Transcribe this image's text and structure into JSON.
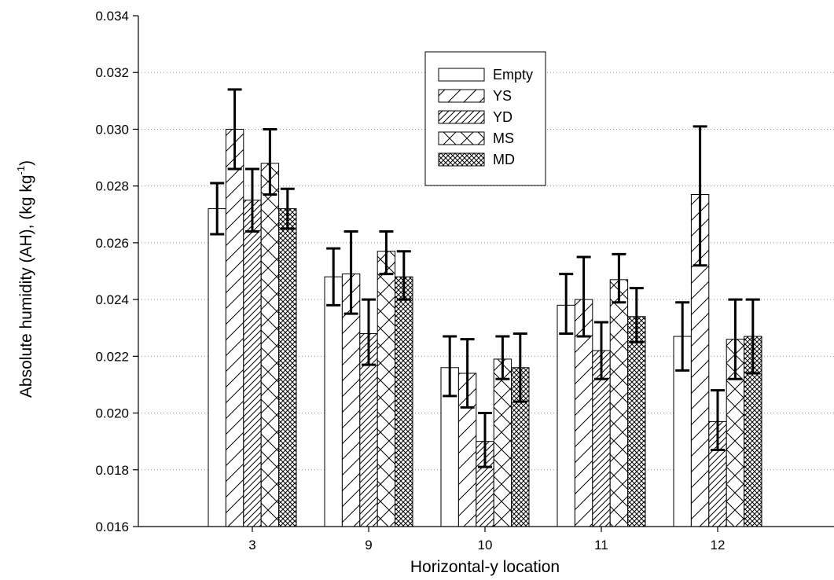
{
  "chart_data": {
    "type": "bar",
    "title": "",
    "xlabel": "Horizontal-y location",
    "ylabel_main": "Absolute humidity (AH), (kg kg",
    "ylabel_sup": "-1",
    "ylabel_close": ")",
    "ylim": [
      0.016,
      0.034
    ],
    "yticks": [
      "0.016",
      "0.018",
      "0.020",
      "0.022",
      "0.024",
      "0.026",
      "0.028",
      "0.030",
      "0.032",
      "0.034"
    ],
    "categories": [
      "3",
      "9",
      "10",
      "11",
      "12"
    ],
    "grid": "horizontal dotted",
    "legend_position": "top-center",
    "series": [
      {
        "name": "Empty",
        "pattern": "none",
        "values": [
          0.0272,
          0.0248,
          0.0216,
          0.0238,
          0.0227
        ],
        "err_low": [
          0.0263,
          0.0238,
          0.0206,
          0.0228,
          0.0215
        ],
        "err_high": [
          0.0281,
          0.0258,
          0.0227,
          0.0249,
          0.0239
        ]
      },
      {
        "name": "YS",
        "pattern": "wide-hatch",
        "values": [
          0.03,
          0.0249,
          0.0214,
          0.024,
          0.0277
        ],
        "err_low": [
          0.0286,
          0.0235,
          0.0202,
          0.0227,
          0.0252
        ],
        "err_high": [
          0.0314,
          0.0264,
          0.0226,
          0.0255,
          0.0301
        ]
      },
      {
        "name": "YD",
        "pattern": "dense-hatch",
        "values": [
          0.0275,
          0.0228,
          0.019,
          0.0222,
          0.0197
        ],
        "err_low": [
          0.0264,
          0.0217,
          0.0181,
          0.0212,
          0.0187
        ],
        "err_high": [
          0.0286,
          0.024,
          0.02,
          0.0232,
          0.0208
        ]
      },
      {
        "name": "MS",
        "pattern": "cross-hatch",
        "values": [
          0.0288,
          0.0257,
          0.0219,
          0.0247,
          0.0226
        ],
        "err_low": [
          0.0277,
          0.0249,
          0.0212,
          0.0239,
          0.0212
        ],
        "err_high": [
          0.03,
          0.0264,
          0.0227,
          0.0256,
          0.024
        ]
      },
      {
        "name": "MD",
        "pattern": "fine-crosshatch",
        "values": [
          0.0272,
          0.0248,
          0.0216,
          0.0234,
          0.0227
        ],
        "err_low": [
          0.0265,
          0.024,
          0.0204,
          0.0225,
          0.0214
        ],
        "err_high": [
          0.0279,
          0.0257,
          0.0228,
          0.0244,
          0.024
        ]
      }
    ]
  }
}
